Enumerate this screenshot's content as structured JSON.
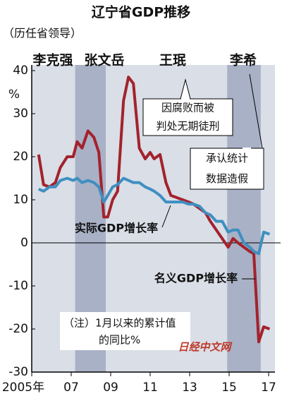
{
  "chart_data": {
    "type": "line",
    "title": "辽宁省GDP推移",
    "subtitle": "（历任省领导）",
    "y_unit": "%",
    "leaders": [
      "李克强",
      "张文岳",
      "王珉",
      "李希"
    ],
    "x": [
      2005.35,
      2005.6,
      2005.9,
      2006.2,
      2006.45,
      2006.8,
      2007.1,
      2007.3,
      2007.55,
      2007.85,
      2008.15,
      2008.4,
      2008.65,
      2008.85,
      2009.1,
      2009.35,
      2009.65,
      2009.9,
      2010.15,
      2010.45,
      2010.75,
      2011.0,
      2011.2,
      2011.5,
      2011.8,
      2012.05,
      2012.35,
      2012.65,
      2012.95,
      2013.2,
      2013.5,
      2013.8,
      2014.05,
      2014.35,
      2014.65,
      2014.95,
      2015.2,
      2015.45,
      2015.75,
      2016.05,
      2016.25,
      2016.5,
      2016.75,
      2017.05
    ],
    "series": [
      {
        "name": "名义GDP增长率",
        "color": "#a3222c",
        "values": [
          20.5,
          13.5,
          13,
          14,
          17.5,
          20,
          20,
          23.5,
          22,
          26,
          24.5,
          21,
          6,
          6,
          10,
          12,
          33,
          38.5,
          37,
          22,
          19.5,
          21,
          19.5,
          20.5,
          14,
          11,
          10.5,
          10,
          9.5,
          9,
          8,
          7,
          5,
          3,
          1,
          -1,
          1,
          0,
          -1,
          -2,
          -2.5,
          -23,
          -19.5,
          -20
        ]
      },
      {
        "name": "实际GDP增长率",
        "color": "#3f8fc0",
        "values": [
          12.5,
          12,
          13,
          13,
          14.5,
          15,
          14.5,
          15,
          14,
          14.5,
          14,
          13,
          9.5,
          11,
          13,
          13.5,
          15,
          14.5,
          14,
          14,
          13,
          12.5,
          12,
          11,
          9.5,
          9.5,
          9.5,
          9.5,
          9,
          9,
          8.5,
          7,
          6.5,
          5,
          5,
          2.5,
          3,
          3,
          0,
          -1,
          -2,
          -2.5,
          2.5,
          2
        ]
      }
    ],
    "shaded_periods": [
      [
        2007.2,
        2008.75
      ],
      [
        2014.9,
        2016.6
      ]
    ],
    "xlim": [
      2005,
      2017.32
    ],
    "ylim": [
      -30,
      40
    ],
    "xticks": [
      {
        "value": 2005,
        "label": "2005年"
      },
      {
        "value": 2007,
        "label": "07"
      },
      {
        "value": 2009,
        "label": "09"
      },
      {
        "value": 2011,
        "label": "11"
      },
      {
        "value": 2013,
        "label": "13"
      },
      {
        "value": 2015,
        "label": "15"
      },
      {
        "value": 2017,
        "label": "17"
      }
    ],
    "yticks": [
      40,
      30,
      20,
      10,
      0,
      -10,
      -20,
      -30
    ],
    "annotations": [
      [
        "因腐败而被",
        "判处无期徒刑"
      ],
      [
        "承认统计",
        "数据造假"
      ]
    ],
    "footnote": [
      "（注）1月以来的累计值",
      "的同比%"
    ],
    "source": "日经中文网"
  }
}
